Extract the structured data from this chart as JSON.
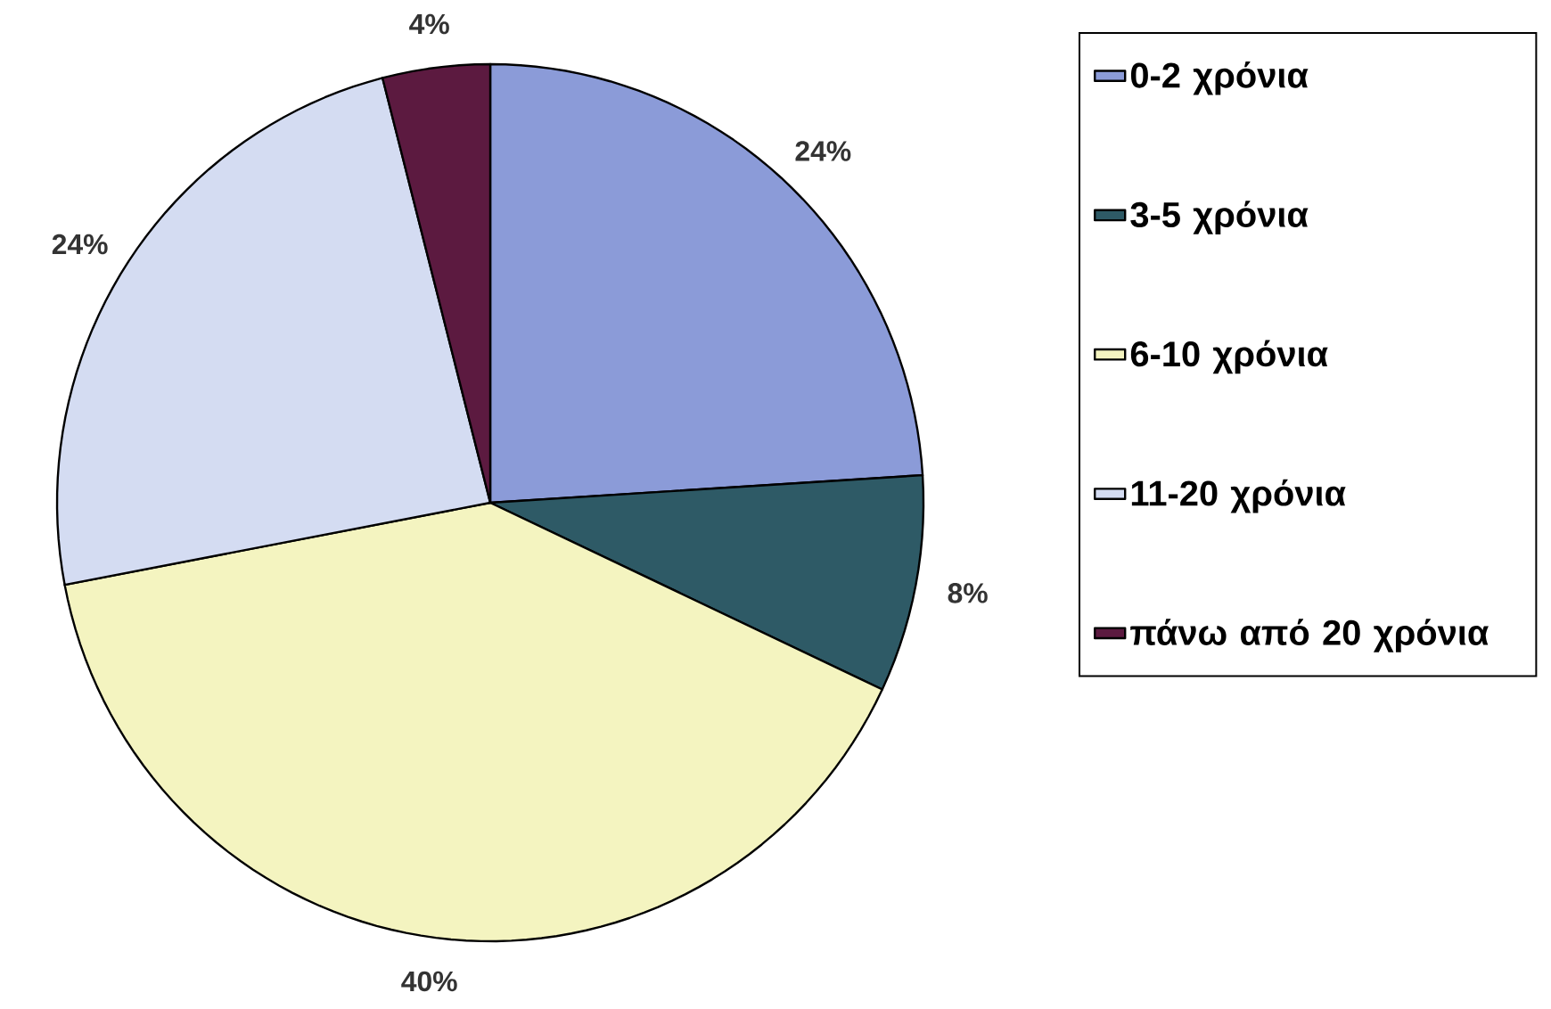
{
  "chart_data": {
    "type": "pie",
    "categories": [
      "0-2 χρόνια",
      "3-5 χρόνια",
      "6-10 χρόνια",
      "11-20 χρόνια",
      "πάνω από 20 χρόνια"
    ],
    "values": [
      24,
      8,
      40,
      24,
      4
    ],
    "value_labels": [
      "24%",
      "8%",
      "40%",
      "24%",
      "4%"
    ],
    "colors": [
      "#8b9bd8",
      "#2e5a66",
      "#f4f4c0",
      "#d4dcf2",
      "#5c1a40"
    ],
    "legend": "right"
  }
}
